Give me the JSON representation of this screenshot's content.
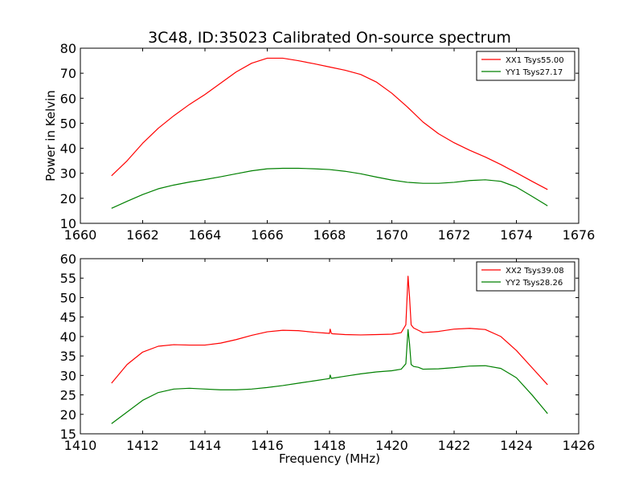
{
  "title": "3C48, ID:35023 Calibrated On-source spectrum",
  "chart_data": [
    {
      "type": "line",
      "ylabel": "Power in Kelvin",
      "xlabel": "",
      "xlim": [
        1660,
        1676
      ],
      "ylim": [
        10,
        80
      ],
      "xticks": [
        1660,
        1662,
        1664,
        1666,
        1668,
        1670,
        1672,
        1674,
        1676
      ],
      "yticks": [
        10,
        20,
        30,
        40,
        50,
        60,
        70,
        80
      ],
      "legend_position": "top-right",
      "series": [
        {
          "name": "XX1 Tsys55.00",
          "color": "#ff0000",
          "x": [
            1661,
            1661.5,
            1662,
            1662.5,
            1663,
            1663.5,
            1664,
            1664.5,
            1665,
            1665.5,
            1666,
            1666.5,
            1667,
            1667.5,
            1668,
            1668.5,
            1669,
            1669.5,
            1670,
            1670.5,
            1671,
            1671.5,
            1672,
            1672.5,
            1673,
            1673.5,
            1674,
            1674.5,
            1675
          ],
          "y": [
            29,
            35,
            42,
            48,
            53,
            57.5,
            61.5,
            66,
            70.5,
            74,
            76,
            76,
            75,
            73.8,
            72.5,
            71.2,
            69.5,
            66.5,
            62,
            56.5,
            50.5,
            45.8,
            42.2,
            39.2,
            36.5,
            33.5,
            30.2,
            26.8,
            23.5
          ]
        },
        {
          "name": "YY1 Tsys27.17",
          "color": "#008000",
          "x": [
            1661,
            1661.5,
            1662,
            1662.5,
            1663,
            1663.5,
            1664,
            1664.5,
            1665,
            1665.5,
            1666,
            1666.5,
            1667,
            1667.5,
            1668,
            1668.5,
            1669,
            1669.5,
            1670,
            1670.5,
            1671,
            1671.5,
            1672,
            1672.5,
            1673,
            1673.5,
            1674,
            1674.5,
            1675
          ],
          "y": [
            16,
            18.8,
            21.5,
            23.8,
            25.3,
            26.5,
            27.5,
            28.6,
            29.8,
            31,
            31.8,
            32,
            32,
            31.8,
            31.5,
            30.8,
            29.8,
            28.5,
            27.3,
            26.4,
            26,
            26,
            26.4,
            27.1,
            27.4,
            26.8,
            24.5,
            20.8,
            17
          ]
        }
      ]
    },
    {
      "type": "line",
      "ylabel": "",
      "xlabel": "Frequency (MHz)",
      "xlim": [
        1410,
        1426
      ],
      "ylim": [
        15,
        60
      ],
      "xticks": [
        1410,
        1412,
        1414,
        1416,
        1418,
        1420,
        1422,
        1424,
        1426
      ],
      "yticks": [
        15,
        20,
        25,
        30,
        35,
        40,
        45,
        50,
        55,
        60
      ],
      "legend_position": "top-right",
      "series": [
        {
          "name": "XX2 Tsys39.08",
          "color": "#ff0000",
          "x": [
            1411,
            1411.5,
            1412,
            1412.5,
            1413,
            1413.5,
            1414,
            1414.5,
            1415,
            1415.5,
            1416,
            1416.5,
            1417,
            1417.5,
            1418,
            1418.02,
            1418.06,
            1418.1,
            1418.5,
            1419,
            1419.5,
            1420,
            1420.3,
            1420.45,
            1420.52,
            1420.57,
            1420.62,
            1420.7,
            1420.85,
            1421,
            1421.5,
            1422,
            1422.5,
            1423,
            1423.5,
            1424,
            1424.5,
            1425
          ],
          "y": [
            28,
            32.8,
            36,
            37.5,
            37.9,
            37.8,
            37.8,
            38.3,
            39.2,
            40.3,
            41.2,
            41.6,
            41.5,
            41.1,
            40.8,
            41.9,
            40.8,
            40.7,
            40.5,
            40.4,
            40.5,
            40.6,
            41,
            43,
            55.5,
            50,
            43,
            42.2,
            41.6,
            41,
            41.3,
            41.9,
            42.1,
            41.8,
            40,
            36.4,
            32,
            27.6
          ]
        },
        {
          "name": "YY2 Tsys28.26",
          "color": "#008000",
          "x": [
            1411,
            1411.5,
            1412,
            1412.5,
            1413,
            1413.5,
            1414,
            1414.5,
            1415,
            1415.5,
            1416,
            1416.5,
            1417,
            1417.5,
            1418,
            1418.02,
            1418.06,
            1418.1,
            1418.5,
            1419,
            1419.5,
            1420,
            1420.3,
            1420.45,
            1420.52,
            1420.57,
            1420.62,
            1420.7,
            1420.85,
            1421,
            1421.5,
            1422,
            1422.5,
            1423,
            1423.5,
            1424,
            1424.5,
            1425
          ],
          "y": [
            17.6,
            20.6,
            23.6,
            25.6,
            26.5,
            26.7,
            26.5,
            26.3,
            26.3,
            26.5,
            26.9,
            27.4,
            28,
            28.6,
            29.2,
            30.1,
            29.2,
            29.3,
            29.8,
            30.4,
            30.9,
            31.2,
            31.6,
            33,
            41.8,
            38,
            32.8,
            32.3,
            32.1,
            31.6,
            31.7,
            32,
            32.4,
            32.5,
            31.8,
            29.4,
            25,
            20.2
          ]
        }
      ]
    }
  ]
}
